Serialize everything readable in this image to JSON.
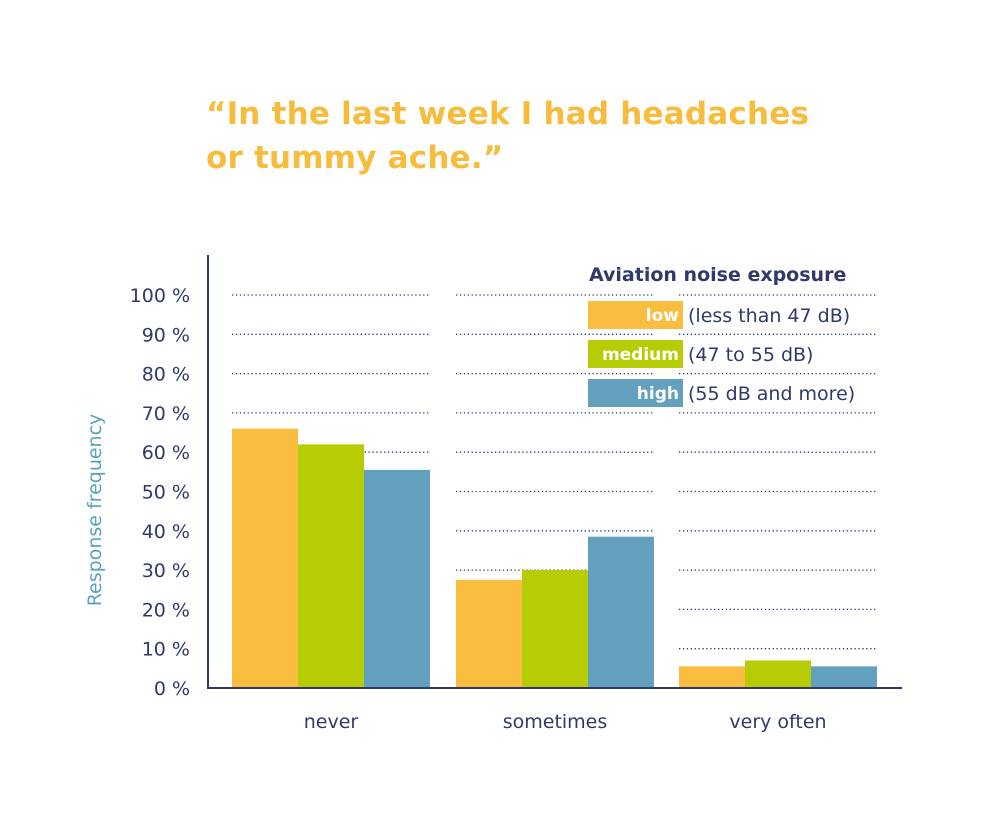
{
  "title_lines": [
    "“In the last week I had headaches",
    "or tummy ache.”"
  ],
  "colors": {
    "title": "#f7bc3c",
    "axis": "#2f3a6b",
    "text": "#2f3a6b",
    "ylabel": "#5aa1bd",
    "grid": "#2f3a6b"
  },
  "chart_data": {
    "type": "bar",
    "ylabel": "Response frequency",
    "xlabel": "",
    "ylim": [
      0,
      100
    ],
    "yticks": [
      0,
      10,
      20,
      30,
      40,
      50,
      60,
      70,
      80,
      90,
      100
    ],
    "ytick_labels": [
      "0 %",
      "10 %",
      "20 %",
      "30 %",
      "40 %",
      "50 %",
      "60 %",
      "70 %",
      "80 %",
      "90 %",
      "100 %"
    ],
    "grid": true,
    "grid_style": "dotted",
    "categories": [
      "never",
      "sometimes",
      "very often"
    ],
    "legend_title": "Aviation noise exposure",
    "legend_position": "top-right",
    "series": [
      {
        "name": "low",
        "description": "(less than 47 dB)",
        "color": "#fbbd3f",
        "values": [
          66,
          27.5,
          5.5
        ]
      },
      {
        "name": "medium",
        "description": "(47 to 55 dB)",
        "color": "#b8cc05",
        "values": [
          62,
          30,
          7
        ]
      },
      {
        "name": "high",
        "description": "(55 dB and more)",
        "color": "#62a0bd",
        "values": [
          55.5,
          38.5,
          5.5
        ]
      }
    ]
  }
}
